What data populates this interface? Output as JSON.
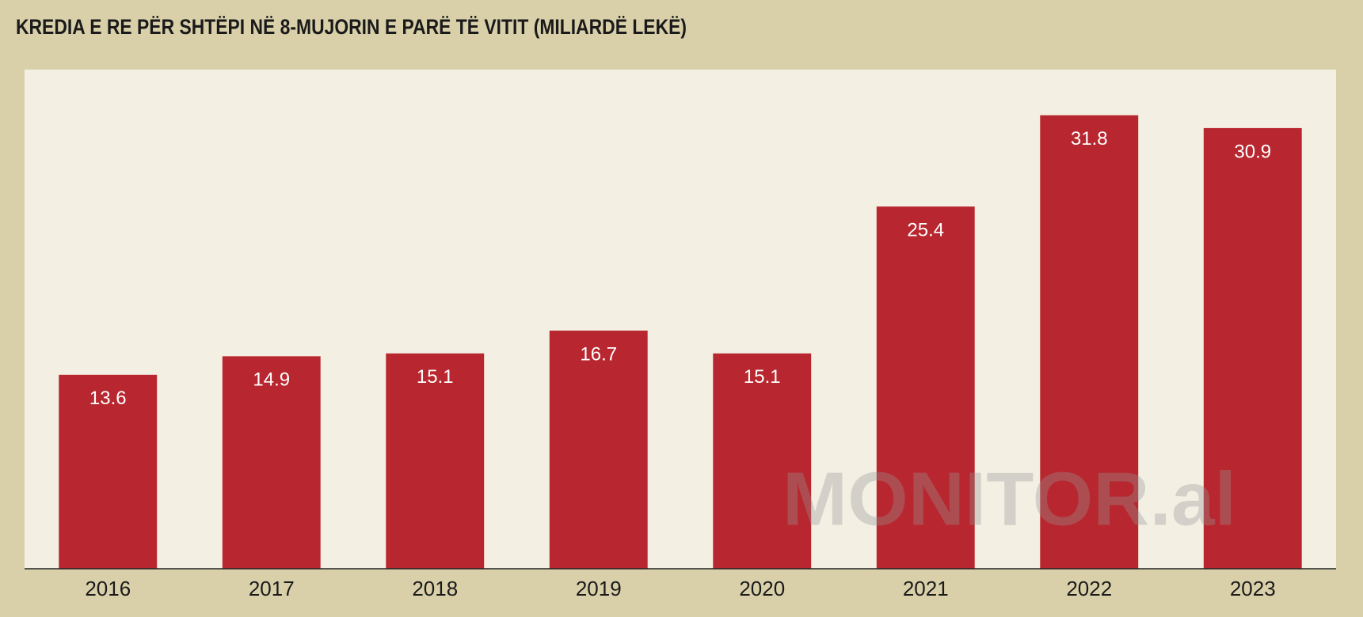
{
  "chart_data": {
    "type": "bar",
    "title": "KREDIA E RE PËR SHTËPI NË 8-MUJORIN E PARË TË VITIT (MILIARDË LEKË)",
    "categories": [
      "2016",
      "2017",
      "2018",
      "2019",
      "2020",
      "2021",
      "2022",
      "2023"
    ],
    "values": [
      13.6,
      14.9,
      15.1,
      16.7,
      15.1,
      25.4,
      31.8,
      30.9
    ],
    "color": "#b8272f",
    "ylim": [
      0,
      35
    ],
    "watermark": "MONITOR.al"
  }
}
